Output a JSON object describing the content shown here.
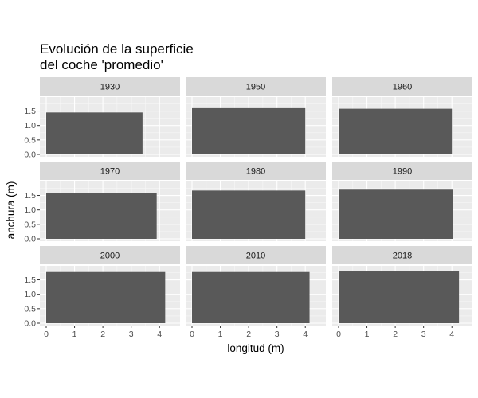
{
  "chart_data": {
    "type": "bar",
    "title_lines": [
      "Evolución de la superficie",
      "del coche 'promedio'"
    ],
    "xlabel": "longitud (m)",
    "ylabel": "anchura (m)",
    "xlim": [
      0,
      4.5
    ],
    "ylim": [
      0,
      1.9
    ],
    "x_ticks": [
      0,
      1,
      2,
      3,
      4
    ],
    "y_ticks": [
      "0.0",
      "0.5",
      "1.0",
      "1.5"
    ],
    "grid": true,
    "facets": [
      {
        "label": "1930",
        "longitud": 3.4,
        "anchura": 1.45
      },
      {
        "label": "1950",
        "longitud": 4.0,
        "anchura": 1.6
      },
      {
        "label": "1960",
        "longitud": 4.0,
        "anchura": 1.58
      },
      {
        "label": "1970",
        "longitud": 3.9,
        "anchura": 1.58
      },
      {
        "label": "1980",
        "longitud": 4.0,
        "anchura": 1.67
      },
      {
        "label": "1990",
        "longitud": 4.05,
        "anchura": 1.7
      },
      {
        "label": "2000",
        "longitud": 4.2,
        "anchura": 1.77
      },
      {
        "label": "2010",
        "longitud": 4.15,
        "anchura": 1.77
      },
      {
        "label": "2018",
        "longitud": 4.25,
        "anchura": 1.8
      }
    ]
  },
  "colors": {
    "panel_bg": "#ebebeb",
    "grid_major": "#ffffff",
    "strip_bg": "#d9d9d9",
    "bar": "#595959"
  }
}
